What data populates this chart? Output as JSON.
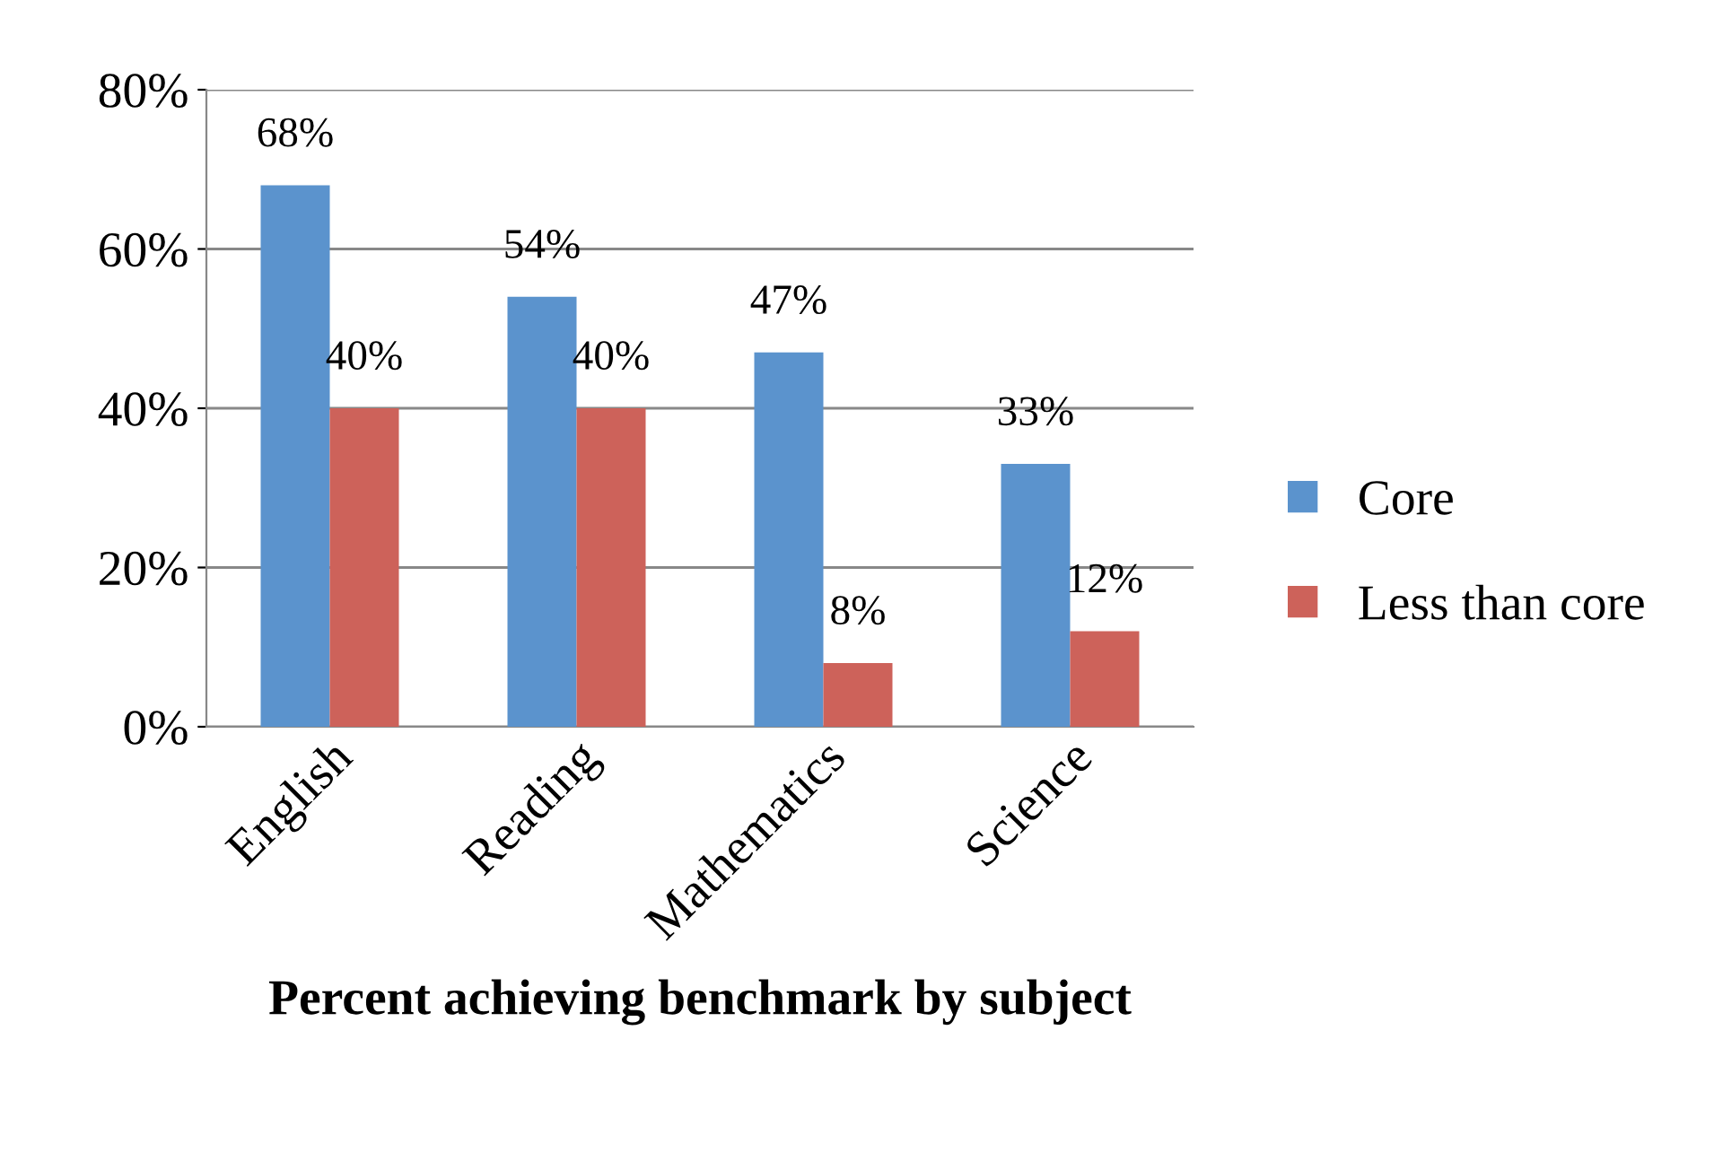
{
  "chart_data": {
    "type": "bar",
    "xlabel": "Percent achieving benchmark by subject",
    "categories": [
      "English",
      "Reading",
      "Mathematics",
      "Science"
    ],
    "series": [
      {
        "name": "Core",
        "color": "#5b93cd",
        "values": [
          68,
          54,
          47,
          33
        ],
        "value_labels": [
          "68%",
          "54%",
          "47%",
          "33%"
        ]
      },
      {
        "name": "Less than core",
        "color": "#cd625a",
        "values": [
          40,
          40,
          8,
          12
        ],
        "value_labels": [
          "40%",
          "40%",
          "8%",
          "12%"
        ]
      }
    ],
    "ylim": [
      0,
      80
    ],
    "yticks": [
      {
        "value": 0,
        "label": "0%"
      },
      {
        "value": 20,
        "label": "20%"
      },
      {
        "value": 40,
        "label": "40%"
      },
      {
        "value": 60,
        "label": "60%"
      },
      {
        "value": 80,
        "label": "80%"
      }
    ],
    "grid": "y",
    "legend": "right"
  }
}
